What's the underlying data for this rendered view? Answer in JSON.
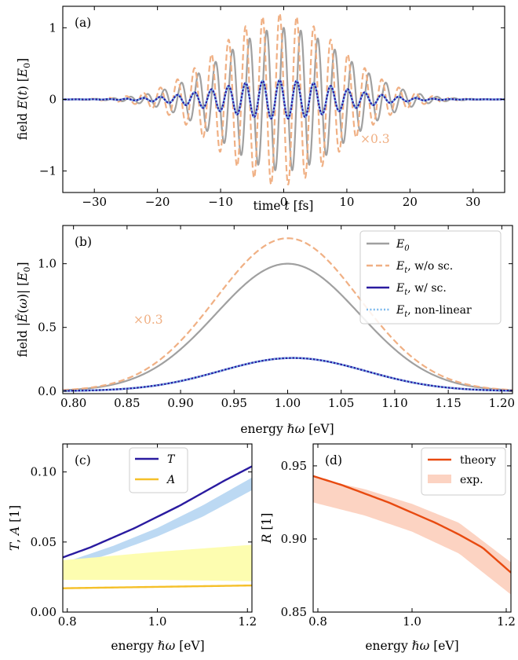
{
  "chart_data": [
    {
      "id": "a",
      "type": "line",
      "panel_label": "(a)",
      "xlabel": "time t [fs]",
      "ylabel": "field E(t) [E0]",
      "xlim": [
        -35,
        35
      ],
      "ylim": [
        -1.3,
        1.3
      ],
      "xticks": [
        -30,
        -20,
        -10,
        0,
        10,
        20,
        30
      ],
      "xtick_labels": [
        "−30",
        "−20",
        "−10",
        "0",
        "10",
        "20",
        "30"
      ],
      "yticks": [
        -1,
        0,
        1
      ],
      "ytick_labels": [
        "−1",
        "0",
        "1"
      ],
      "annotation": "×0.3",
      "series": [
        {
          "name": "E0",
          "color": "#a0a0a0",
          "style": "solid",
          "amplitude": 1.0,
          "period_fs": 2.7,
          "envelope_width_fs": 9.5,
          "phase_offset_fs": 0.0
        },
        {
          "name": "Et, w/o sc. (×0.3)",
          "color": "#f0b084",
          "style": "dashed",
          "amplitude": 1.2,
          "period_fs": 2.7,
          "envelope_width_fs": 9.5,
          "phase_offset_fs": -0.65
        },
        {
          "name": "Et, w/ sc.",
          "color": "#2a1ba0",
          "style": "solid",
          "amplitude": 0.27,
          "period_fs": 2.7,
          "envelope_width_fs": 9.5,
          "phase_offset_fs": -0.65
        },
        {
          "name": "Et, non-linear",
          "color": "#7ab8ec",
          "style": "dotted",
          "amplitude": 0.27,
          "period_fs": 2.7,
          "envelope_width_fs": 9.5,
          "phase_offset_fs": -0.65
        }
      ]
    },
    {
      "id": "b",
      "type": "line",
      "panel_label": "(b)",
      "xlabel": "energy ℏω [eV]",
      "ylabel": "field |Ê(ω)| [E0]",
      "xlim": [
        0.79,
        1.21
      ],
      "ylim": [
        -0.02,
        1.3
      ],
      "xticks": [
        0.8,
        0.85,
        0.9,
        0.95,
        1.0,
        1.05,
        1.1,
        1.15,
        1.2
      ],
      "xtick_labels": [
        "0.80",
        "0.85",
        "0.90",
        "0.95",
        "1.00",
        "1.05",
        "1.10",
        "1.15",
        "1.20"
      ],
      "yticks": [
        0.0,
        0.5,
        1.0
      ],
      "ytick_labels": [
        "0.0",
        "0.5",
        "1.0"
      ],
      "annotation": "×0.3",
      "legend": {
        "placement": "top-right",
        "entries": [
          "E0",
          "Et, w/o sc.",
          "Et, w/ sc.",
          "Et, non-linear"
        ]
      },
      "series": [
        {
          "name": "E0",
          "color": "#a0a0a0",
          "style": "solid",
          "peak": 1.0,
          "center": 1.0,
          "sigma": 0.067
        },
        {
          "name": "Et, w/o sc.",
          "color": "#f0b084",
          "style": "dashed",
          "peak": 1.2,
          "center": 1.0,
          "sigma": 0.067
        },
        {
          "name": "Et, w/ sc.",
          "color": "#2a1ba0",
          "style": "solid",
          "peak": 0.26,
          "center": 1.005,
          "sigma": 0.068
        },
        {
          "name": "Et, non-linear",
          "color": "#7ab8ec",
          "style": "dotted",
          "peak": 0.26,
          "center": 1.005,
          "sigma": 0.068
        }
      ]
    },
    {
      "id": "c",
      "type": "line",
      "panel_label": "(c)",
      "xlabel": "energy ℏω [eV]",
      "ylabel": "T, A [1]",
      "xlim": [
        0.79,
        1.21
      ],
      "ylim": [
        0.0,
        0.12
      ],
      "xticks": [
        0.8,
        1.0,
        1.2
      ],
      "xtick_labels": [
        "0.8",
        "1.0",
        "1.2"
      ],
      "yticks": [
        0.0,
        0.05,
        0.1
      ],
      "ytick_labels": [
        "0.00",
        "0.05",
        "0.10"
      ],
      "legend": {
        "placement": "top-center",
        "entries": [
          "T",
          "A"
        ]
      },
      "series": [
        {
          "name": "T",
          "color": "#2a1ba0",
          "style": "solid",
          "x": [
            0.79,
            0.85,
            0.9,
            0.95,
            1.0,
            1.05,
            1.1,
            1.15,
            1.21
          ],
          "y": [
            0.039,
            0.046,
            0.053,
            0.06,
            0.068,
            0.076,
            0.085,
            0.094,
            0.104
          ]
        },
        {
          "name": "A",
          "color": "#f5c02a",
          "style": "solid",
          "x": [
            0.79,
            1.21
          ],
          "y": [
            0.017,
            0.019
          ]
        }
      ],
      "bands": [
        {
          "name": "T exp.",
          "color": "#bcd9f3",
          "x": [
            0.79,
            0.9,
            1.0,
            1.1,
            1.21
          ],
          "lower": [
            0.031,
            0.042,
            0.054,
            0.068,
            0.087
          ],
          "upper": [
            0.035,
            0.047,
            0.06,
            0.076,
            0.096
          ]
        },
        {
          "name": "A exp.",
          "color": "#fdfdb0",
          "x": [
            0.79,
            1.0,
            1.21
          ],
          "lower": [
            0.023,
            0.023,
            0.022
          ],
          "upper": [
            0.037,
            0.043,
            0.048
          ]
        }
      ]
    },
    {
      "id": "d",
      "type": "line",
      "panel_label": "(d)",
      "xlabel": "energy ℏω [eV]",
      "ylabel": "R [1]",
      "xlim": [
        0.79,
        1.21
      ],
      "ylim": [
        0.85,
        0.965
      ],
      "xticks": [
        0.8,
        1.0,
        1.2
      ],
      "xtick_labels": [
        "0.8",
        "1.0",
        "1.2"
      ],
      "yticks": [
        0.85,
        0.9,
        0.95
      ],
      "ytick_labels": [
        "0.85",
        "0.90",
        "0.95"
      ],
      "legend": {
        "placement": "top-right",
        "entries": [
          "theory",
          "exp."
        ]
      },
      "series": [
        {
          "name": "theory",
          "color": "#e84a10",
          "style": "solid",
          "x": [
            0.79,
            0.85,
            0.9,
            0.95,
            1.0,
            1.05,
            1.1,
            1.15,
            1.21
          ],
          "y": [
            0.943,
            0.937,
            0.931,
            0.925,
            0.918,
            0.911,
            0.903,
            0.894,
            0.877
          ]
        }
      ],
      "bands": [
        {
          "name": "exp.",
          "color": "#fcd3c2",
          "x": [
            0.79,
            0.9,
            1.0,
            1.1,
            1.21
          ],
          "lower": [
            0.925,
            0.916,
            0.905,
            0.89,
            0.862
          ],
          "upper": [
            0.942,
            0.934,
            0.924,
            0.911,
            0.884
          ]
        }
      ]
    }
  ]
}
